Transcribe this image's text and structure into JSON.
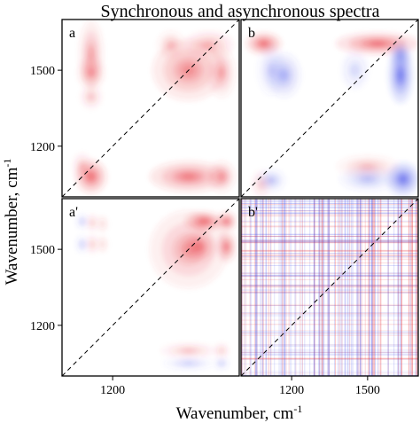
{
  "figure": {
    "title": "Synchronous and asynchronous spectra",
    "xlabel": "Wavenumber, cm",
    "xlabel_sup": "-1",
    "ylabel": "Wavenumber, cm",
    "ylabel_sup": "-1",
    "colors": {
      "positive": "#e8323a",
      "negative": "#3a46e8",
      "frame": "#000000",
      "diagonal": "#000000"
    }
  },
  "chart_data": [
    {
      "panel": "a",
      "label": "a",
      "type": "heatmap",
      "kind": "synchronous",
      "xlim": [
        1000,
        1700
      ],
      "ylim": [
        1000,
        1700
      ],
      "xticks": [],
      "yticks": [
        1500,
        1200
      ],
      "peaks": [
        {
          "x": 1115,
          "y": 1565,
          "sx": 22,
          "sy": 60,
          "v": 0.55
        },
        {
          "x": 1115,
          "y": 1490,
          "sx": 24,
          "sy": 30,
          "v": 0.6
        },
        {
          "x": 1115,
          "y": 1395,
          "sx": 20,
          "sy": 22,
          "v": 0.35
        },
        {
          "x": 1115,
          "y": 1080,
          "sx": 28,
          "sy": 30,
          "v": 1.0
        },
        {
          "x": 1080,
          "y": 1120,
          "sx": 18,
          "sy": 25,
          "v": 0.35
        },
        {
          "x": 1500,
          "y": 1080,
          "sx": 70,
          "sy": 28,
          "v": 0.85
        },
        {
          "x": 1630,
          "y": 1080,
          "sx": 25,
          "sy": 28,
          "v": 0.6
        },
        {
          "x": 1500,
          "y": 1500,
          "sx": 65,
          "sy": 55,
          "v": 0.7
        },
        {
          "x": 1580,
          "y": 1600,
          "sx": 45,
          "sy": 25,
          "v": 0.45
        },
        {
          "x": 1630,
          "y": 1490,
          "sx": 25,
          "sy": 45,
          "v": 0.5
        },
        {
          "x": 1430,
          "y": 1600,
          "sx": 25,
          "sy": 25,
          "v": 0.4
        }
      ]
    },
    {
      "panel": "b",
      "label": "b",
      "type": "heatmap",
      "kind": "synchronous",
      "xlim": [
        1000,
        1700
      ],
      "ylim": [
        1000,
        1700
      ],
      "xticks": [],
      "yticks": [],
      "peaks": [
        {
          "x": 1090,
          "y": 1605,
          "sx": 32,
          "sy": 20,
          "v": 1.0
        },
        {
          "x": 1080,
          "y": 1050,
          "sx": 18,
          "sy": 25,
          "v": 0.3
        },
        {
          "x": 1540,
          "y": 1605,
          "sx": 75,
          "sy": 20,
          "v": 0.95
        },
        {
          "x": 1500,
          "y": 1120,
          "sx": 55,
          "sy": 20,
          "v": 0.4
        },
        {
          "x": 1120,
          "y": 1500,
          "sx": 25,
          "sy": 45,
          "v": -0.3
        },
        {
          "x": 1170,
          "y": 1480,
          "sx": 30,
          "sy": 40,
          "v": -0.5
        },
        {
          "x": 1630,
          "y": 1480,
          "sx": 22,
          "sy": 50,
          "v": -1.0
        },
        {
          "x": 1630,
          "y": 1560,
          "sx": 20,
          "sy": 25,
          "v": -0.55
        },
        {
          "x": 1640,
          "y": 1070,
          "sx": 30,
          "sy": 30,
          "v": -1.0
        },
        {
          "x": 1500,
          "y": 1070,
          "sx": 50,
          "sy": 22,
          "v": -0.4
        },
        {
          "x": 1120,
          "y": 1065,
          "sx": 25,
          "sy": 20,
          "v": -0.4
        },
        {
          "x": 1450,
          "y": 1500,
          "sx": 25,
          "sy": 35,
          "v": -0.25
        }
      ]
    },
    {
      "panel": "a'",
      "label": "a'",
      "type": "heatmap",
      "kind": "asynchronous",
      "xlim": [
        1000,
        1700
      ],
      "ylim": [
        1000,
        1700
      ],
      "xticks": [
        1200
      ],
      "yticks": [
        1500,
        1200
      ],
      "peaks": [
        {
          "x": 1500,
          "y": 1500,
          "sx": 70,
          "sy": 70,
          "v": 0.55
        },
        {
          "x": 1560,
          "y": 1610,
          "sx": 35,
          "sy": 18,
          "v": 1.0
        },
        {
          "x": 1650,
          "y": 1610,
          "sx": 18,
          "sy": 18,
          "v": 0.9
        },
        {
          "x": 1650,
          "y": 1510,
          "sx": 18,
          "sy": 28,
          "v": 0.8
        },
        {
          "x": 1540,
          "y": 1510,
          "sx": 30,
          "sy": 28,
          "v": 0.7
        },
        {
          "x": 1080,
          "y": 1610,
          "sx": 12,
          "sy": 14,
          "v": -0.3
        },
        {
          "x": 1080,
          "y": 1520,
          "sx": 12,
          "sy": 16,
          "v": -0.3
        },
        {
          "x": 1120,
          "y": 1605,
          "sx": 12,
          "sy": 16,
          "v": 0.3
        },
        {
          "x": 1120,
          "y": 1520,
          "sx": 12,
          "sy": 18,
          "v": 0.3
        },
        {
          "x": 1160,
          "y": 1600,
          "sx": 10,
          "sy": 16,
          "v": 0.25
        },
        {
          "x": 1160,
          "y": 1520,
          "sx": 10,
          "sy": 16,
          "v": 0.25
        },
        {
          "x": 1500,
          "y": 1100,
          "sx": 50,
          "sy": 14,
          "v": 0.35
        },
        {
          "x": 1500,
          "y": 1050,
          "sx": 45,
          "sy": 12,
          "v": -0.3
        },
        {
          "x": 1630,
          "y": 1100,
          "sx": 14,
          "sy": 14,
          "v": 0.3
        },
        {
          "x": 1630,
          "y": 1050,
          "sx": 14,
          "sy": 12,
          "v": -0.3
        }
      ]
    },
    {
      "panel": "b'",
      "label": "b'",
      "type": "heatmap",
      "kind": "asynchronous",
      "xlim": [
        1000,
        1700
      ],
      "ylim": [
        1000,
        1700
      ],
      "xticks": [
        1200,
        1500
      ],
      "yticks": [],
      "noise": true
    }
  ]
}
